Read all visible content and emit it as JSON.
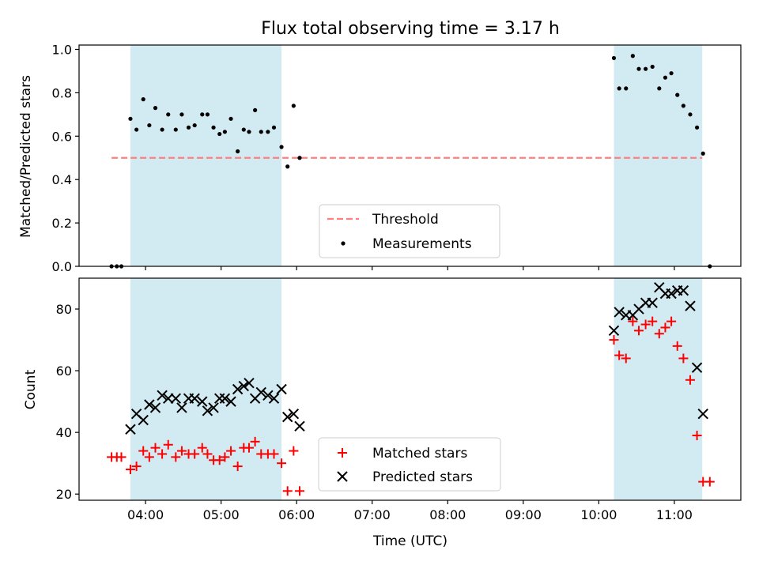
{
  "chart_data": [
    {
      "type": "scatter",
      "title": "Flux total observing time = 3.17 h",
      "xlabel": "",
      "ylabel": "Matched/Predicted stars",
      "ylim": [
        0,
        1.02
      ],
      "yticks": [
        0.0,
        0.2,
        0.4,
        0.6,
        0.8,
        1.0
      ],
      "ytick_labels": [
        "0.0",
        "0.2",
        "0.4",
        "0.6",
        "0.8",
        "1.0"
      ],
      "xlim_hours": [
        3.12,
        11.88
      ],
      "xticks_hours": [
        4,
        5,
        6,
        7,
        8,
        9,
        10,
        11
      ],
      "shaded_spans_hours": [
        [
          3.8,
          5.8
        ],
        [
          10.2,
          11.37
        ]
      ],
      "shade_color": "#add8e6",
      "threshold": {
        "name": "Threshold",
        "y": 0.5,
        "x_range_hours": [
          3.55,
          11.37
        ],
        "color": "#ff7f7f"
      },
      "series": [
        {
          "name": "Measurements",
          "color": "#000000",
          "x_hours": [
            3.55,
            3.62,
            3.68,
            3.8,
            3.88,
            3.97,
            4.05,
            4.13,
            4.22,
            4.3,
            4.4,
            4.48,
            4.57,
            4.65,
            4.75,
            4.82,
            4.9,
            4.98,
            5.05,
            5.13,
            5.22,
            5.3,
            5.37,
            5.45,
            5.53,
            5.62,
            5.7,
            5.8,
            5.88,
            5.96,
            6.04,
            10.2,
            10.27,
            10.36,
            10.45,
            10.53,
            10.62,
            10.71,
            10.8,
            10.88,
            10.96,
            11.04,
            11.12,
            11.21,
            11.3,
            11.38,
            11.47
          ],
          "y": [
            0.0,
            0.0,
            0.0,
            0.68,
            0.63,
            0.77,
            0.65,
            0.73,
            0.63,
            0.7,
            0.63,
            0.7,
            0.64,
            0.65,
            0.7,
            0.7,
            0.64,
            0.61,
            0.62,
            0.68,
            0.53,
            0.63,
            0.62,
            0.72,
            0.62,
            0.62,
            0.64,
            0.55,
            0.46,
            0.74,
            0.5,
            0.96,
            0.82,
            0.82,
            0.97,
            0.91,
            0.91,
            0.92,
            0.82,
            0.87,
            0.89,
            0.79,
            0.74,
            0.7,
            0.64,
            0.52,
            0.0
          ]
        }
      ],
      "legend_location": "lower center"
    },
    {
      "type": "scatter",
      "xlabel": "Time (UTC)",
      "ylabel": "Count",
      "ylim": [
        18,
        90
      ],
      "yticks": [
        20,
        40,
        60,
        80
      ],
      "ytick_labels": [
        "20",
        "40",
        "60",
        "80"
      ],
      "xlim_hours": [
        3.12,
        11.88
      ],
      "xticks_hours": [
        4,
        5,
        6,
        7,
        8,
        9,
        10,
        11
      ],
      "xtick_labels": [
        "04:00",
        "05:00",
        "06:00",
        "07:00",
        "08:00",
        "09:00",
        "10:00",
        "11:00"
      ],
      "shaded_spans_hours": [
        [
          3.8,
          5.8
        ],
        [
          10.2,
          11.37
        ]
      ],
      "shade_color": "#add8e6",
      "series": [
        {
          "name": "Matched stars",
          "marker": "+",
          "color": "#ff0000",
          "x_hours": [
            3.55,
            3.62,
            3.68,
            3.8,
            3.88,
            3.97,
            4.05,
            4.13,
            4.22,
            4.3,
            4.4,
            4.48,
            4.57,
            4.65,
            4.75,
            4.82,
            4.9,
            4.98,
            5.05,
            5.13,
            5.22,
            5.3,
            5.37,
            5.45,
            5.53,
            5.62,
            5.7,
            5.8,
            5.88,
            5.96,
            6.04,
            10.2,
            10.27,
            10.36,
            10.45,
            10.53,
            10.62,
            10.71,
            10.8,
            10.88,
            10.96,
            11.04,
            11.12,
            11.21,
            11.3,
            11.38,
            11.47
          ],
          "y": [
            32,
            32,
            32,
            28,
            29,
            34,
            32,
            35,
            33,
            36,
            32,
            34,
            33,
            33,
            35,
            33,
            31,
            31,
            32,
            34,
            29,
            35,
            35,
            37,
            33,
            33,
            33,
            30,
            21,
            34,
            21,
            70,
            65,
            64,
            76,
            73,
            75,
            76,
            72,
            74,
            76,
            68,
            64,
            57,
            39,
            24,
            24
          ]
        },
        {
          "name": "Predicted stars",
          "marker": "x",
          "color": "#000000",
          "x_hours": [
            3.8,
            3.88,
            3.97,
            4.05,
            4.13,
            4.22,
            4.3,
            4.4,
            4.48,
            4.57,
            4.65,
            4.75,
            4.82,
            4.9,
            4.98,
            5.05,
            5.13,
            5.22,
            5.3,
            5.37,
            5.45,
            5.53,
            5.62,
            5.7,
            5.8,
            5.88,
            5.96,
            6.04,
            10.2,
            10.27,
            10.36,
            10.45,
            10.53,
            10.62,
            10.71,
            10.8,
            10.88,
            10.96,
            11.04,
            11.12,
            11.21,
            11.3,
            11.38
          ],
          "y": [
            41,
            46,
            44,
            49,
            48,
            52,
            51,
            51,
            48,
            51,
            51,
            50,
            47,
            48,
            51,
            51,
            50,
            54,
            55,
            56,
            51,
            53,
            52,
            51,
            54,
            45,
            46,
            42,
            73,
            79,
            78,
            78,
            80,
            82,
            82,
            87,
            85,
            85,
            86,
            86,
            81,
            61,
            46
          ]
        }
      ],
      "legend_location": "lower center"
    }
  ]
}
